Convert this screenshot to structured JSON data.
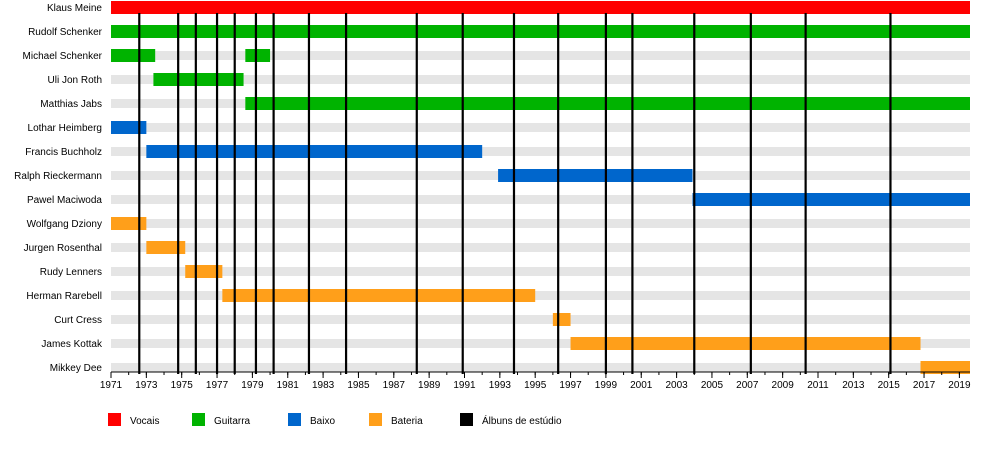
{
  "chart_data": {
    "type": "timeline",
    "colors": {
      "Vocais": "#ff0000",
      "Guitarra": "#00b300",
      "Baixo": "#0066cc",
      "Bateria": "#ff9f1a",
      "Álbuns de estúdio": "#000000",
      "stripe": "#e5e5e5"
    },
    "x_range": [
      1971,
      2019.6
    ],
    "x_ticks": [
      "1971",
      "1973",
      "1975",
      "1977",
      "1979",
      "1981",
      "1983",
      "1985",
      "1987",
      "1989",
      "1991",
      "1993",
      "1995",
      "1997",
      "1999",
      "2001",
      "2003",
      "2005",
      "2007",
      "2009",
      "2011",
      "2013",
      "2015",
      "2017",
      "2019"
    ],
    "rows": [
      {
        "name": "Klaus Meine",
        "role": "Vocais",
        "spans": [
          [
            1971.0,
            2019.6
          ]
        ]
      },
      {
        "name": "Rudolf Schenker",
        "role": "Guitarra",
        "spans": [
          [
            1971.0,
            2019.6
          ]
        ]
      },
      {
        "name": "Michael Schenker",
        "role": "Guitarra",
        "spans": [
          [
            1971.0,
            1973.5
          ],
          [
            1978.6,
            1980.0
          ]
        ]
      },
      {
        "name": "Uli Jon Roth",
        "role": "Guitarra",
        "spans": [
          [
            1973.4,
            1978.5
          ]
        ]
      },
      {
        "name": "Matthias Jabs",
        "role": "Guitarra",
        "spans": [
          [
            1978.6,
            2019.6
          ]
        ]
      },
      {
        "name": "Lothar Heimberg",
        "role": "Baixo",
        "spans": [
          [
            1971.0,
            1973.0
          ]
        ]
      },
      {
        "name": "Francis Buchholz",
        "role": "Baixo",
        "spans": [
          [
            1973.0,
            1992.0
          ]
        ]
      },
      {
        "name": "Ralph Rieckermann",
        "role": "Baixo",
        "spans": [
          [
            1992.9,
            2003.9
          ]
        ]
      },
      {
        "name": "Pawel Maciwoda",
        "role": "Baixo",
        "spans": [
          [
            2003.9,
            2019.6
          ]
        ]
      },
      {
        "name": "Wolfgang Dziony",
        "role": "Bateria",
        "spans": [
          [
            1971.0,
            1973.0
          ]
        ]
      },
      {
        "name": "Jurgen Rosenthal",
        "role": "Bateria",
        "spans": [
          [
            1973.0,
            1975.2
          ]
        ]
      },
      {
        "name": "Rudy Lenners",
        "role": "Bateria",
        "spans": [
          [
            1975.2,
            1977.3
          ]
        ]
      },
      {
        "name": "Herman Rarebell",
        "role": "Bateria",
        "spans": [
          [
            1977.3,
            1995.0
          ]
        ]
      },
      {
        "name": "Curt Cress",
        "role": "Bateria",
        "spans": [
          [
            1996.0,
            1997.0
          ]
        ]
      },
      {
        "name": "James Kottak",
        "role": "Bateria",
        "spans": [
          [
            1997.0,
            2016.8
          ]
        ]
      },
      {
        "name": "Mikkey Dee",
        "role": "Bateria",
        "spans": [
          [
            2016.8,
            2019.6
          ]
        ]
      }
    ],
    "albums": [
      1972.6,
      1974.8,
      1975.8,
      1977.0,
      1978.0,
      1979.2,
      1980.2,
      1982.2,
      1984.3,
      1988.3,
      1990.9,
      1993.8,
      1996.3,
      1999.0,
      2000.5,
      2004.0,
      2007.2,
      2010.3,
      2015.1
    ],
    "legend": [
      {
        "label": "Vocais",
        "color": "#ff0000"
      },
      {
        "label": "Guitarra",
        "color": "#00b300"
      },
      {
        "label": "Baixo",
        "color": "#0066cc"
      },
      {
        "label": "Bateria",
        "color": "#ff9f1a"
      },
      {
        "label": "Álbuns de estúdio",
        "color": "#000000"
      }
    ]
  }
}
